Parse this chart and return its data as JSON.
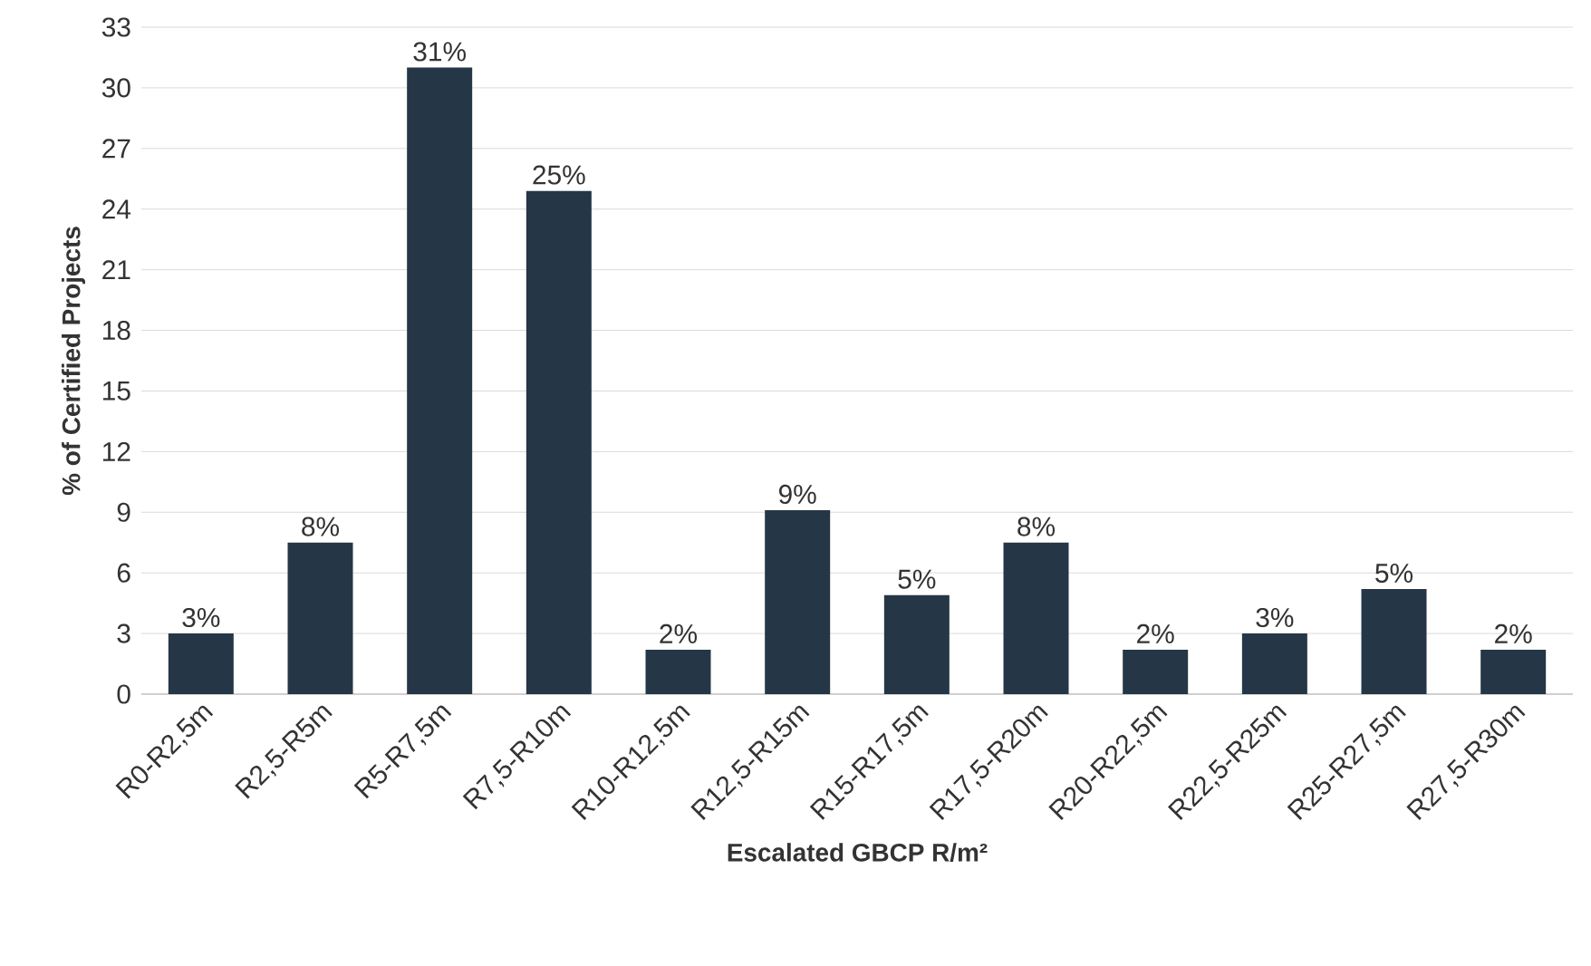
{
  "chart_data": {
    "type": "bar",
    "xlabel": "Escalated GBCP R/m²",
    "ylabel": "% of Certified Projects",
    "categories": [
      "R0-R2,5m",
      "R2,5-R5m",
      "R5-R7,5m",
      "R7,5-R10m",
      "R10-R12,5m",
      "R12,5-R15m",
      "R15-R17,5m",
      "R17,5-R20m",
      "R20-R22,5m",
      "R22,5-R25m",
      "R25-R27,5m",
      "R27,5-R30m"
    ],
    "values": [
      3.0,
      7.5,
      31.0,
      24.9,
      2.2,
      9.1,
      4.9,
      7.5,
      2.2,
      3.0,
      5.2,
      2.2
    ],
    "value_labels": [
      "3%",
      "8%",
      "31%",
      "25%",
      "2%",
      "9%",
      "5%",
      "8%",
      "2%",
      "3%",
      "5%",
      "2%"
    ],
    "color": "#253746",
    "ylim": [
      0,
      33
    ],
    "yticks": [
      0,
      3,
      6,
      9,
      12,
      15,
      18,
      21,
      24,
      27,
      30,
      33
    ],
    "grid": "y"
  }
}
